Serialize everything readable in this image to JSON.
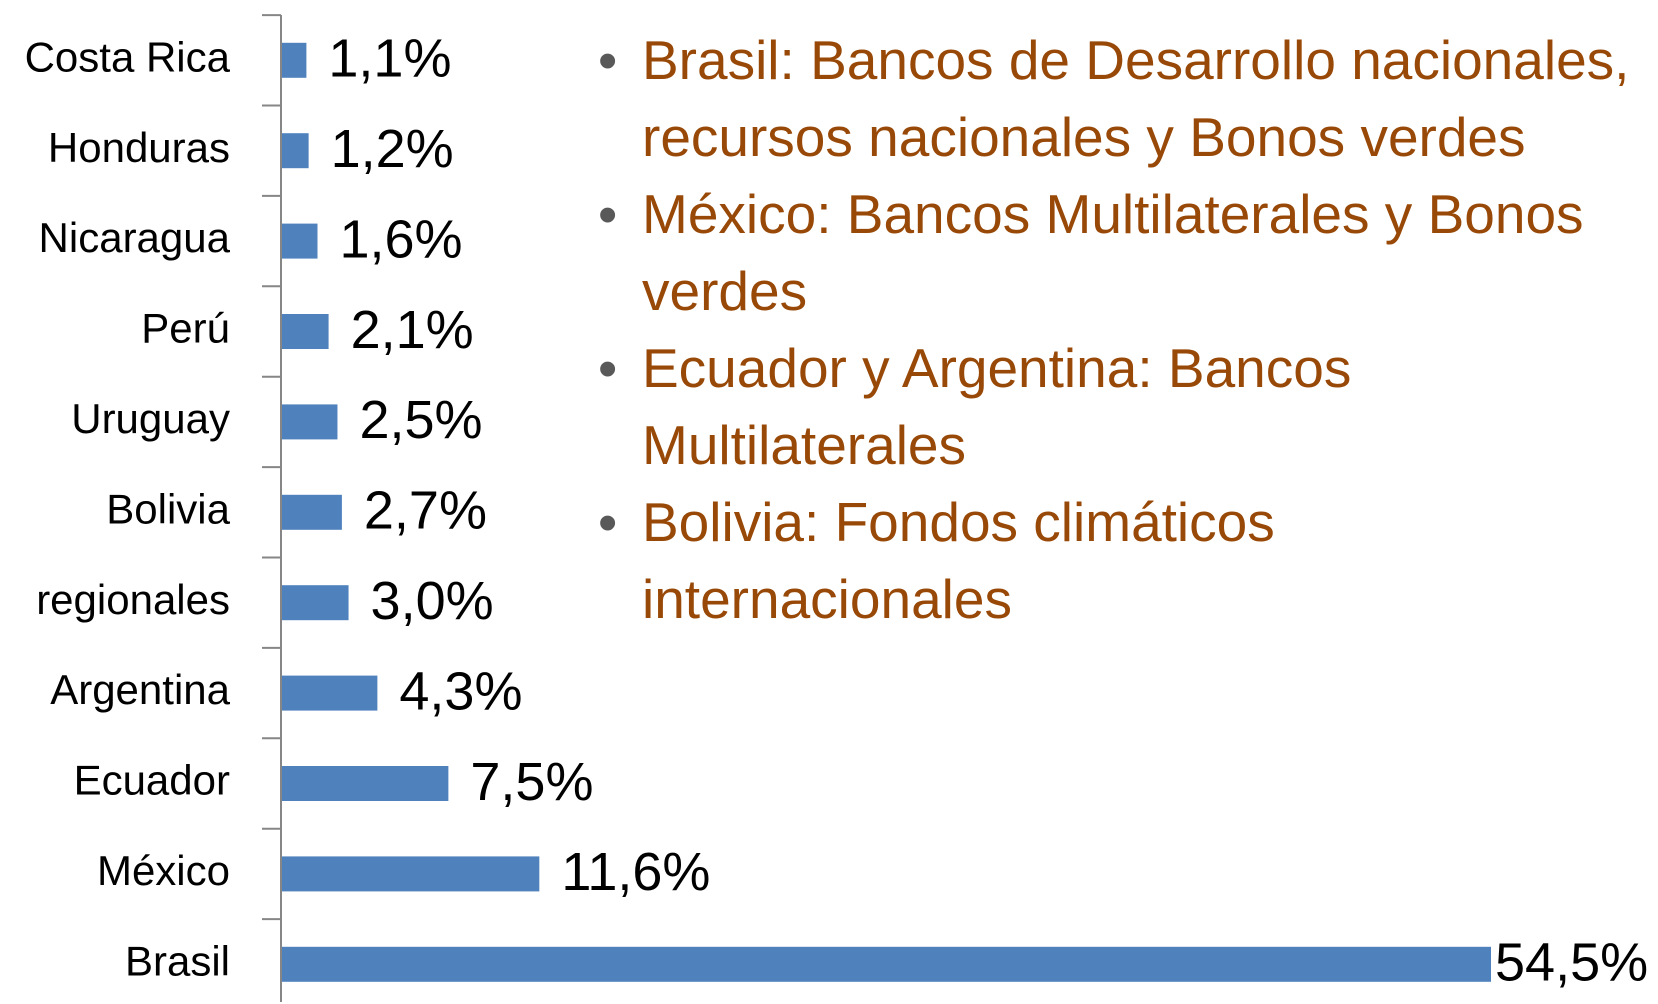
{
  "chart_data": {
    "type": "bar",
    "orientation": "horizontal",
    "categories": [
      "Costa Rica",
      "Honduras",
      "Nicaragua",
      "Perú",
      "Uruguay",
      "Bolivia",
      "regionales",
      "Argentina",
      "Ecuador",
      "México",
      "Brasil"
    ],
    "values": [
      1.1,
      1.2,
      1.6,
      2.1,
      2.5,
      2.7,
      3.0,
      4.3,
      7.5,
      11.6,
      54.5
    ],
    "value_labels": [
      "1,1%",
      "1,2%",
      "1,6%",
      "2,1%",
      "2,5%",
      "2,7%",
      "3,0%",
      "4,3%",
      "7,5%",
      "11,6%",
      "54,5%"
    ],
    "color": "#4f81bd",
    "annotations": [
      "Brasil: Bancos de Desarrollo nacionales, recursos nacionales y Bonos verdes",
      "México: Bancos Multilaterales y Bonos verdes",
      "Ecuador y Argentina: Bancos Multilaterales",
      "Bolivia: Fondos climáticos internacionales"
    ]
  }
}
